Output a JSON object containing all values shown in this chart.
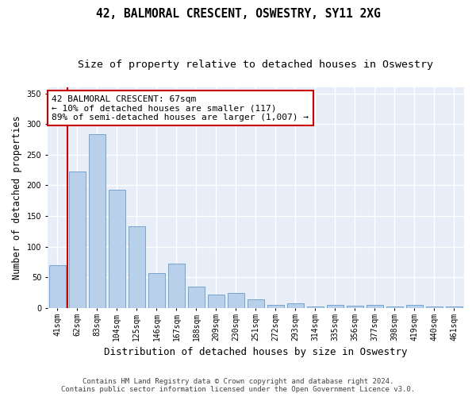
{
  "title": "42, BALMORAL CRESCENT, OSWESTRY, SY11 2XG",
  "subtitle": "Size of property relative to detached houses in Oswestry",
  "xlabel": "Distribution of detached houses by size in Oswestry",
  "ylabel": "Number of detached properties",
  "categories": [
    "41sqm",
    "62sqm",
    "83sqm",
    "104sqm",
    "125sqm",
    "146sqm",
    "167sqm",
    "188sqm",
    "209sqm",
    "230sqm",
    "251sqm",
    "272sqm",
    "293sqm",
    "314sqm",
    "335sqm",
    "356sqm",
    "377sqm",
    "398sqm",
    "419sqm",
    "440sqm",
    "461sqm"
  ],
  "values": [
    70,
    223,
    283,
    193,
    133,
    57,
    73,
    35,
    22,
    25,
    14,
    5,
    7,
    3,
    5,
    4,
    5,
    3,
    5,
    3,
    2
  ],
  "bar_color": "#b8d0ea",
  "bar_edge_color": "#6699cc",
  "vline_color": "#cc0000",
  "ylim": [
    0,
    360
  ],
  "yticks": [
    0,
    50,
    100,
    150,
    200,
    250,
    300,
    350
  ],
  "background_color": "#e8eef8",
  "grid_color": "#ffffff",
  "annotation_text": "42 BALMORAL CRESCENT: 67sqm\n← 10% of detached houses are smaller (117)\n89% of semi-detached houses are larger (1,007) →",
  "annotation_box_color": "#ffffff",
  "annotation_box_edge": "#cc0000",
  "footer": "Contains HM Land Registry data © Crown copyright and database right 2024.\nContains public sector information licensed under the Open Government Licence v3.0.",
  "title_fontsize": 10.5,
  "subtitle_fontsize": 9.5,
  "xlabel_fontsize": 9,
  "ylabel_fontsize": 8.5,
  "tick_fontsize": 7,
  "annotation_fontsize": 8,
  "footer_fontsize": 6.5
}
